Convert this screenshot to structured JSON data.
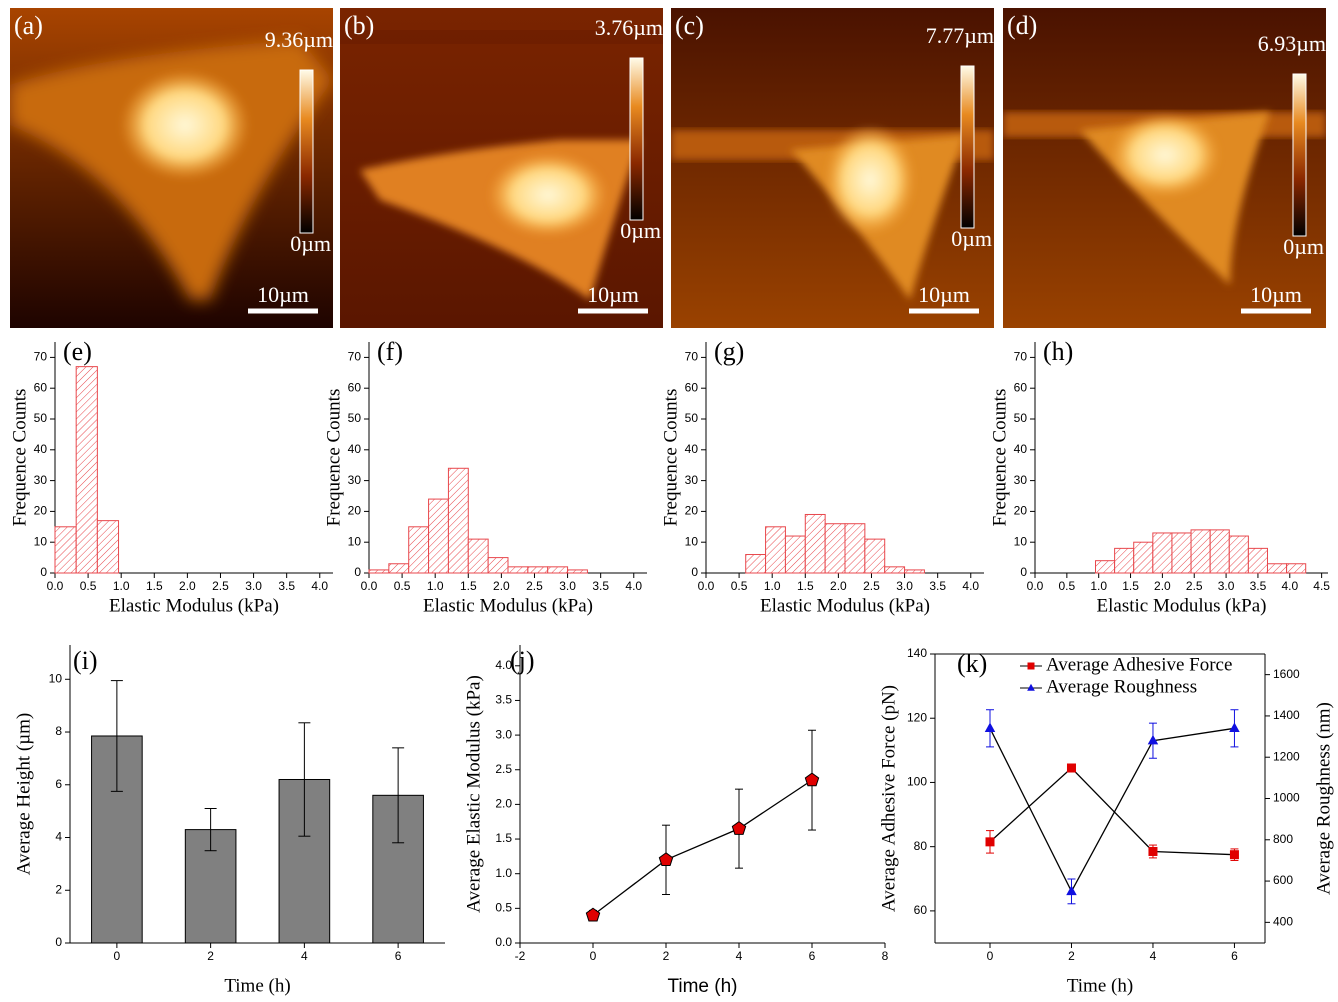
{
  "afm_images": [
    {
      "label": "(a)",
      "max": "9.36µm",
      "min": "0µm",
      "scale": "10µm"
    },
    {
      "label": "(b)",
      "max": "3.76µm",
      "min": "0µm",
      "scale": "10µm"
    },
    {
      "label": "(c)",
      "max": "7.77µm",
      "min": "0µm",
      "scale": "10µm"
    },
    {
      "label": "(d)",
      "max": "6.93µm",
      "min": "0µm",
      "scale": "10µm"
    }
  ],
  "chart_data": [
    {
      "type": "histogram",
      "label": "(e)",
      "xlabel": "Elastic Modulus (kPa)",
      "ylabel": "Frequence Counts",
      "color": "#e8474c",
      "bins": [
        0,
        0.32,
        0.64,
        0.96
      ],
      "values": [
        15,
        67,
        17
      ],
      "xlim": [
        0,
        4.2
      ],
      "ylim": [
        0,
        75
      ],
      "xticks": [
        {
          "value": 0,
          "label": "0.0"
        },
        0.5,
        {
          "value": 1,
          "label": "1.0"
        },
        1.5,
        {
          "value": 2,
          "label": "2.0"
        },
        2.5,
        {
          "value": 3,
          "label": "3.0"
        },
        3.5,
        {
          "value": 4,
          "label": "4.0"
        }
      ],
      "yticks": [
        0,
        10,
        20,
        30,
        40,
        50,
        60,
        70
      ]
    },
    {
      "type": "histogram",
      "label": "(f)",
      "xlabel": "Elastic Modulus (kPa)",
      "ylabel": "Frequence Counts",
      "color": "#e8474c",
      "bins": [
        0,
        0.3,
        0.6,
        0.9,
        1.2,
        1.5,
        1.8,
        2.1,
        2.4,
        2.7,
        3.0,
        3.3
      ],
      "values": [
        1,
        3,
        15,
        24,
        34,
        11,
        5,
        2,
        2,
        2,
        1
      ],
      "xlim": [
        0,
        4.2
      ],
      "ylim": [
        0,
        75
      ],
      "xticks": [
        {
          "value": 0,
          "label": "0.0"
        },
        0.5,
        {
          "value": 1,
          "label": "1.0"
        },
        1.5,
        {
          "value": 2,
          "label": "2.0"
        },
        2.5,
        {
          "value": 3,
          "label": "3.0"
        },
        3.5,
        {
          "value": 4,
          "label": "4.0"
        }
      ],
      "yticks": [
        0,
        10,
        20,
        30,
        40,
        50,
        60,
        70
      ]
    },
    {
      "type": "histogram",
      "label": "(g)",
      "xlabel": "Elastic Modulus (kPa)",
      "ylabel": "Frequence Counts",
      "color": "#e8474c",
      "bins": [
        0.6,
        0.9,
        1.2,
        1.5,
        1.8,
        2.1,
        2.4,
        2.7,
        3.0,
        3.3
      ],
      "values": [
        6,
        15,
        12,
        19,
        16,
        16,
        11,
        2,
        1
      ],
      "xlim": [
        0,
        4.2
      ],
      "ylim": [
        0,
        75
      ],
      "xticks": [
        {
          "value": 0,
          "label": "0.0"
        },
        0.5,
        {
          "value": 1,
          "label": "1.0"
        },
        1.5,
        {
          "value": 2,
          "label": "2.0"
        },
        2.5,
        {
          "value": 3,
          "label": "3.0"
        },
        3.5,
        {
          "value": 4,
          "label": "4.0"
        }
      ],
      "yticks": [
        0,
        10,
        20,
        30,
        40,
        50,
        60,
        70
      ]
    },
    {
      "type": "histogram",
      "label": "(h)",
      "xlabel": "Elastic Modulus (kPa)",
      "ylabel": "Frequence Counts",
      "color": "#e8474c",
      "bins": [
        0.95,
        1.25,
        1.55,
        1.85,
        2.15,
        2.45,
        2.75,
        3.05,
        3.35,
        3.65,
        3.95,
        4.25
      ],
      "values": [
        4,
        8,
        10,
        13,
        13,
        14,
        14,
        12,
        8,
        3,
        3
      ],
      "xlim": [
        0,
        4.6
      ],
      "ylim": [
        0,
        75
      ],
      "xticks": [
        {
          "value": 0,
          "label": "0.0"
        },
        0.5,
        {
          "value": 1,
          "label": "1.0"
        },
        1.5,
        {
          "value": 2,
          "label": "2.0"
        },
        2.5,
        {
          "value": 3,
          "label": "3.0"
        },
        3.5,
        {
          "value": 4,
          "label": "4.0"
        },
        4.5
      ],
      "yticks": [
        0,
        10,
        20,
        30,
        40,
        50,
        60,
        70
      ]
    },
    {
      "type": "bar",
      "label": "(i)",
      "xlabel": "Time (h)",
      "ylabel": "Average Height (µm)",
      "color": "#808080",
      "categories": [
        "0",
        "2",
        "4",
        "6"
      ],
      "values": [
        7.85,
        4.3,
        6.2,
        5.6
      ],
      "errors": [
        2.1,
        0.8,
        2.15,
        1.8
      ],
      "ylim": [
        0,
        11.3
      ],
      "yticks": [
        0,
        2,
        4,
        6,
        8,
        10
      ]
    },
    {
      "type": "line",
      "label": "(j)",
      "xlabel": "Time (h)",
      "ylabel": "Average Elastic Modulus (kPa)",
      "line_color": "#000000",
      "x": [
        0,
        2,
        4,
        6
      ],
      "series": [
        {
          "color": "#e00000",
          "marker": "pentagon",
          "values": [
            0.4,
            1.2,
            1.65,
            2.35
          ],
          "errors": [
            0.07,
            0.5,
            0.57,
            0.72
          ]
        }
      ],
      "xlim": [
        -2,
        8
      ],
      "xticks": [
        -2,
        0,
        2,
        4,
        6,
        8
      ],
      "ylim": [
        0,
        4.3
      ],
      "yticks": [
        {
          "value": 0,
          "label": "0.0"
        },
        0.5,
        {
          "value": 1,
          "label": "1.0"
        },
        1.5,
        {
          "value": 2,
          "label": "2.0"
        },
        2.5,
        {
          "value": 3,
          "label": "3.0"
        },
        3.5,
        {
          "value": 4,
          "label": "4.0"
        }
      ]
    },
    {
      "type": "line",
      "label": "(k)",
      "xlabel": "Time (h)",
      "ylabel": "Average Adhesive Force (pN)",
      "y2label": "Average Roughness (nm)",
      "line_color": "#000000",
      "legend": "upper right",
      "x": [
        0,
        2,
        4,
        6
      ],
      "series": [
        {
          "name": "Average Adhesive Force",
          "color": "#e00000",
          "marker": "square",
          "values": [
            81.5,
            104.5,
            78.5,
            77.5
          ],
          "errors": [
            3.5,
            1.2,
            2,
            1.8
          ]
        },
        {
          "name": "Average Roughness",
          "color": "#1010e0",
          "marker": "triangle",
          "axis": "y2",
          "values": [
            1340,
            550,
            1280,
            1340
          ],
          "errors": [
            90,
            60,
            85,
            90
          ]
        }
      ],
      "xlim": [
        -1.35,
        6.75
      ],
      "xticks": [
        0,
        2,
        4,
        6
      ],
      "ylim": [
        50,
        140
      ],
      "yticks": [
        60,
        80,
        100,
        120,
        140
      ],
      "y2lim": [
        300,
        1700
      ],
      "y2ticks": [
        400,
        600,
        800,
        1000,
        1200,
        1400,
        1600
      ]
    }
  ]
}
